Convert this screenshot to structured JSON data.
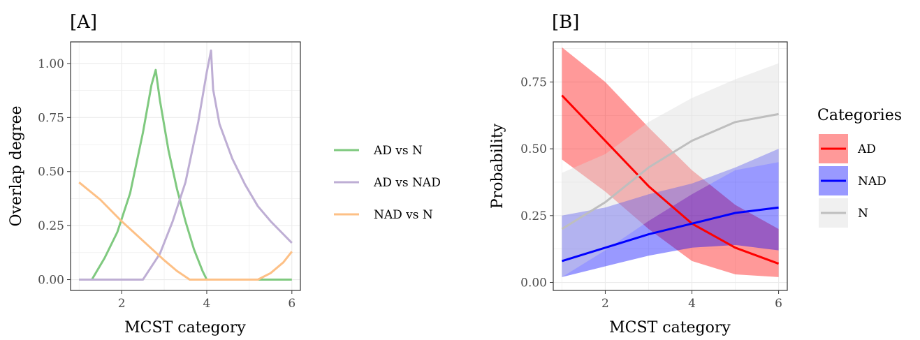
{
  "chart_data": [
    {
      "type": "line",
      "panel_label": "[A]",
      "xlabel": "MCST category",
      "ylabel": "Overlap degree",
      "xlim": [
        0.8,
        6.2
      ],
      "ylim": [
        -0.05,
        1.1
      ],
      "xticks": [
        2,
        4,
        6
      ],
      "xtick_labels": [
        "2",
        "4",
        "6"
      ],
      "yticks": [
        0,
        0.25,
        0.5,
        0.75,
        1.0
      ],
      "ytick_labels": [
        "0.00",
        "0.25",
        "0.50",
        "0.75",
        "1.00"
      ],
      "grid": true,
      "legend_position": "right",
      "series": [
        {
          "name": "AD vs N",
          "color": "#7fc97f",
          "x": [
            1.0,
            1.3,
            1.6,
            1.9,
            2.2,
            2.5,
            2.7,
            2.8,
            2.9,
            3.1,
            3.3,
            3.5,
            3.7,
            3.9,
            4.0,
            4.5,
            5.0,
            5.5,
            6.0
          ],
          "y": [
            0,
            0,
            0.1,
            0.22,
            0.4,
            0.68,
            0.9,
            0.97,
            0.83,
            0.6,
            0.42,
            0.27,
            0.14,
            0.04,
            0,
            0,
            0,
            0,
            0
          ]
        },
        {
          "name": "AD vs NAD",
          "color": "#beaed4",
          "x": [
            1.0,
            1.5,
            2.0,
            2.5,
            2.6,
            2.9,
            3.2,
            3.5,
            3.8,
            4.0,
            4.1,
            4.15,
            4.3,
            4.6,
            4.9,
            5.2,
            5.5,
            5.8,
            6.0
          ],
          "y": [
            0,
            0,
            0,
            0,
            0.03,
            0.12,
            0.27,
            0.45,
            0.73,
            0.96,
            1.06,
            0.88,
            0.72,
            0.56,
            0.44,
            0.34,
            0.27,
            0.21,
            0.17
          ]
        },
        {
          "name": "NAD vs N",
          "color": "#fdc086",
          "x": [
            1.0,
            1.5,
            2.0,
            2.5,
            3.0,
            3.3,
            3.6,
            4.0,
            4.5,
            5.0,
            5.2,
            5.5,
            5.8,
            6.0
          ],
          "y": [
            0.45,
            0.37,
            0.27,
            0.18,
            0.09,
            0.04,
            0,
            0,
            0,
            0,
            0,
            0.03,
            0.08,
            0.13
          ]
        }
      ]
    },
    {
      "type": "area",
      "panel_label": "[B]",
      "xlabel": "MCST category",
      "ylabel": "Probability",
      "xlim": [
        0.8,
        6.2
      ],
      "ylim": [
        -0.03,
        0.9
      ],
      "xticks": [
        2,
        4,
        6
      ],
      "xtick_labels": [
        "2",
        "4",
        "6"
      ],
      "yticks": [
        0,
        0.25,
        0.5,
        0.75
      ],
      "ytick_labels": [
        "0.00",
        "0.25",
        "0.50",
        "0.75"
      ],
      "grid": true,
      "legend_title": "Categories",
      "legend_position": "right",
      "x": [
        1,
        2,
        3,
        4,
        5,
        6
      ],
      "series": [
        {
          "name": "AD",
          "color": "#ff0000",
          "fill": "#ff0000",
          "y": [
            0.7,
            0.53,
            0.36,
            0.22,
            0.13,
            0.07
          ],
          "lower": [
            0.46,
            0.34,
            0.2,
            0.08,
            0.03,
            0.02
          ],
          "upper": [
            0.88,
            0.75,
            0.58,
            0.42,
            0.29,
            0.2
          ]
        },
        {
          "name": "NAD",
          "color": "#0000ff",
          "fill": "#0000ff",
          "y": [
            0.08,
            0.13,
            0.18,
            0.22,
            0.26,
            0.28
          ],
          "lower": [
            0.02,
            0.06,
            0.1,
            0.13,
            0.14,
            0.12
          ],
          "upper": [
            0.25,
            0.28,
            0.33,
            0.37,
            0.43,
            0.5
          ]
        },
        {
          "name": "N",
          "color": "#bebebe",
          "fill": "#d9d9d9",
          "y": [
            0.2,
            0.3,
            0.43,
            0.53,
            0.6,
            0.63
          ],
          "lower": [
            0.02,
            0.12,
            0.23,
            0.33,
            0.42,
            0.45
          ],
          "upper": [
            0.41,
            0.48,
            0.6,
            0.69,
            0.76,
            0.82
          ]
        }
      ]
    }
  ]
}
